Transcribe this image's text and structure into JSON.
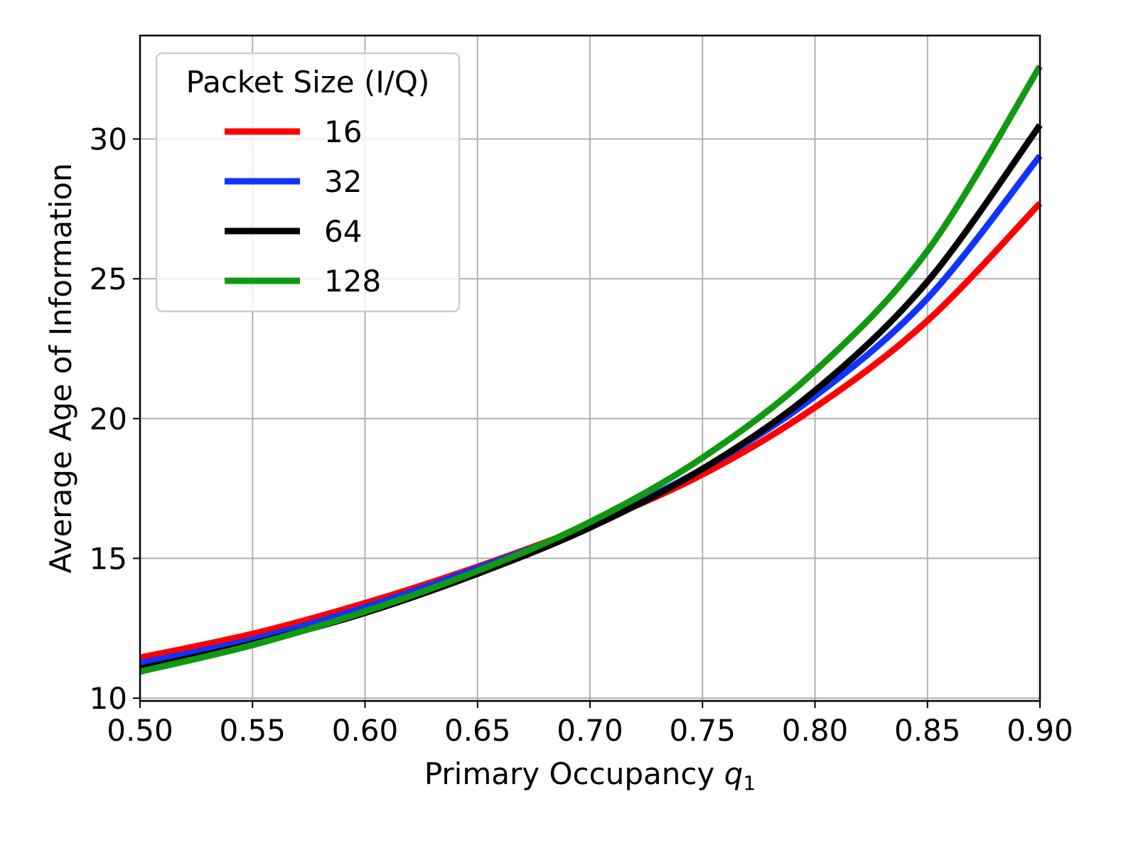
{
  "chart_data": {
    "type": "line",
    "title": "",
    "xlabel": {
      "main": "Primary Occupancy ",
      "var": "q",
      "sub": "1"
    },
    "ylabel": "Average Age of Information",
    "xlim": [
      0.5,
      0.9
    ],
    "ylim": [
      9.9,
      33.7
    ],
    "xticks": [
      0.5,
      0.55,
      0.6,
      0.65,
      0.7,
      0.75,
      0.8,
      0.85,
      0.9
    ],
    "xtick_labels": [
      "0.50",
      "0.55",
      "0.60",
      "0.65",
      "0.70",
      "0.75",
      "0.80",
      "0.85",
      "0.90"
    ],
    "yticks": [
      10,
      15,
      20,
      25,
      30
    ],
    "ytick_labels": [
      "10",
      "15",
      "20",
      "25",
      "30"
    ],
    "grid": true,
    "legend": {
      "title": "Packet Size (I/Q)",
      "position": "top-left"
    },
    "x": [
      0.5,
      0.55,
      0.6,
      0.65,
      0.7,
      0.75,
      0.8,
      0.85,
      0.9
    ],
    "series": [
      {
        "name": "16",
        "color": "#ff0000",
        "values": [
          11.45,
          12.3,
          13.4,
          14.7,
          16.2,
          18.0,
          20.4,
          23.5,
          27.7
        ]
      },
      {
        "name": "32",
        "color": "#1133ff",
        "values": [
          11.25,
          12.1,
          13.25,
          14.65,
          16.2,
          18.2,
          20.8,
          24.3,
          29.4
        ]
      },
      {
        "name": "64",
        "color": "#000000",
        "values": [
          11.05,
          11.95,
          13.05,
          14.45,
          16.1,
          18.2,
          21.0,
          24.9,
          30.5
        ]
      },
      {
        "name": "128",
        "color": "#119911",
        "values": [
          10.95,
          11.9,
          13.1,
          14.55,
          16.3,
          18.6,
          21.7,
          26.0,
          32.6
        ]
      }
    ]
  }
}
